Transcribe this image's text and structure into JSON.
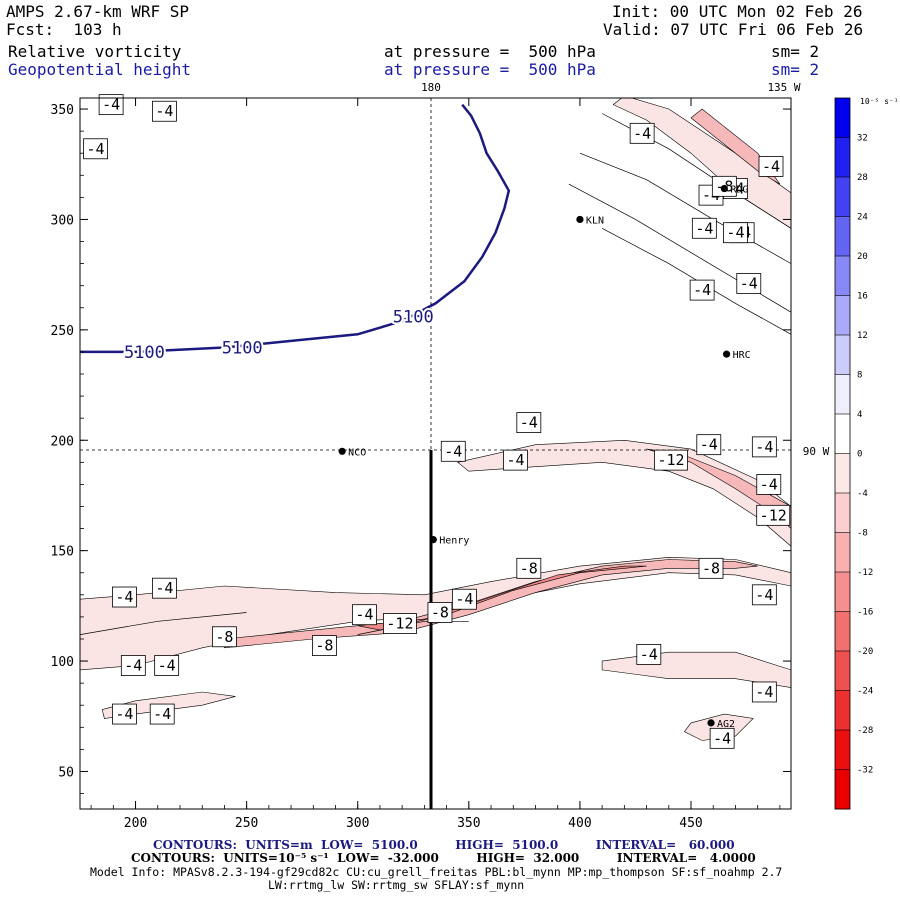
{
  "header": {
    "model": "AMPS 2.67-km WRF SP",
    "fcst": "Fcst:  103 h",
    "init": "Init: 00 UTC Mon 02 Feb 26",
    "valid": "Valid: 07 UTC Fri 06 Feb 26",
    "field1": "Relative vorticity",
    "field2": "Geopotential height",
    "pressure1": "at pressure =  500 hPa",
    "pressure2": "at pressure =  500 hPa",
    "sm1": "sm= 2",
    "sm2": "sm= 2"
  },
  "map_labels": {
    "top_180": "180",
    "top_135w": "135 W",
    "right_90w": "90 W"
  },
  "chart_data": {
    "type": "contour",
    "xlim": [
      175,
      495
    ],
    "ylim": [
      33,
      355
    ],
    "x_ticks": [
      200,
      250,
      300,
      350,
      400,
      450
    ],
    "y_ticks": [
      50,
      100,
      150,
      200,
      250,
      300,
      350
    ],
    "geopotential_height_5100": {
      "label": "5100",
      "labels": [
        "5100",
        "5100",
        "5100"
      ],
      "points": [
        [
          175,
          240
        ],
        [
          200,
          240
        ],
        [
          240,
          242
        ],
        [
          270,
          245
        ],
        [
          300,
          248
        ],
        [
          320,
          254
        ],
        [
          335,
          262
        ],
        [
          348,
          272
        ],
        [
          356,
          283
        ],
        [
          362,
          294
        ],
        [
          366,
          305
        ],
        [
          368,
          313
        ],
        [
          363,
          322
        ],
        [
          358,
          330
        ],
        [
          355,
          339
        ],
        [
          351,
          347
        ],
        [
          347,
          352
        ]
      ]
    },
    "vorticity_labels": [
      {
        "text": "-4",
        "x": 182,
        "y": 332
      },
      {
        "text": "-4",
        "x": 189,
        "y": 352
      },
      {
        "text": "-4",
        "x": 213,
        "y": 349
      },
      {
        "text": "-4",
        "x": 456,
        "y": 296
      },
      {
        "text": "-4",
        "x": 428,
        "y": 339
      },
      {
        "text": "-4",
        "x": 459,
        "y": 311
      },
      {
        "text": "-4",
        "x": 470,
        "y": 314
      },
      {
        "text": "-4",
        "x": 473,
        "y": 294
      },
      {
        "text": "-4",
        "x": 486,
        "y": 324
      },
      {
        "text": "-4",
        "x": 455,
        "y": 268
      },
      {
        "text": "-4",
        "x": 470,
        "y": 294
      },
      {
        "text": "-4",
        "x": 476,
        "y": 271
      },
      {
        "text": "-4",
        "x": 377,
        "y": 208
      },
      {
        "text": "-4",
        "x": 343,
        "y": 195
      },
      {
        "text": "-4",
        "x": 371,
        "y": 191
      },
      {
        "text": "-4",
        "x": 458,
        "y": 198
      },
      {
        "text": "-4",
        "x": 483,
        "y": 197
      },
      {
        "text": "-4",
        "x": 485,
        "y": 180
      },
      {
        "text": "-4",
        "x": 195,
        "y": 129
      },
      {
        "text": "-4",
        "x": 213,
        "y": 133
      },
      {
        "text": "-4",
        "x": 199,
        "y": 98
      },
      {
        "text": "-4",
        "x": 214,
        "y": 98
      },
      {
        "text": "-4",
        "x": 195,
        "y": 76
      },
      {
        "text": "-4",
        "x": 212,
        "y": 76
      },
      {
        "text": "-4",
        "x": 303,
        "y": 121
      },
      {
        "text": "-4",
        "x": 348,
        "y": 128
      },
      {
        "text": "-4",
        "x": 483,
        "y": 130
      },
      {
        "text": "-4",
        "x": 431,
        "y": 103
      },
      {
        "text": "-4",
        "x": 483,
        "y": 86
      },
      {
        "text": "-4",
        "x": 464,
        "y": 65
      },
      {
        "text": "-8",
        "x": 240,
        "y": 111
      },
      {
        "text": "-8",
        "x": 285,
        "y": 107
      },
      {
        "text": "-8",
        "x": 337,
        "y": 122
      },
      {
        "text": "-8",
        "x": 377,
        "y": 142
      },
      {
        "text": "-8",
        "x": 459,
        "y": 142
      },
      {
        "text": "-8",
        "x": 465,
        "y": 315
      },
      {
        "text": "-12",
        "x": 319,
        "y": 117
      },
      {
        "text": "-12",
        "x": 441,
        "y": 191
      },
      {
        "text": "-12",
        "x": 487,
        "y": 166
      }
    ],
    "stations": [
      {
        "name": "KLN",
        "x": 400,
        "y": 300
      },
      {
        "name": "RDG",
        "x": 465,
        "y": 314
      },
      {
        "name": "HRC",
        "x": 466,
        "y": 239
      },
      {
        "name": "NCO",
        "x": 293,
        "y": 195
      },
      {
        "name": "Henry",
        "x": 334,
        "y": 155
      },
      {
        "name": "AG2",
        "x": 459,
        "y": 72
      }
    ],
    "colorbar": {
      "unit": "10⁻⁵ s⁻¹",
      "ticks": [
        "32",
        "28",
        "24",
        "20",
        "16",
        "12",
        "8",
        "4",
        "0",
        "-4",
        "-8",
        "-12",
        "-16",
        "-20",
        "-24",
        "-28",
        "-32"
      ],
      "colors": [
        "#0000ee",
        "#2020f0",
        "#4242f2",
        "#6464f4",
        "#8888f6",
        "#aaaaf8",
        "#ccccfa",
        "#eeeefd",
        "#ffffff",
        "#fde8e8",
        "#fbcfcf",
        "#f8b0b0",
        "#f59090",
        "#f27070",
        "#ef5050",
        "#ec3030",
        "#ea1010",
        "#e80000"
      ]
    }
  },
  "footer": {
    "line1": "CONTOURS:  UNITS=m  LOW=  5100.0         HIGH=  5100.0         INTERVAL=   60.000",
    "line2": "CONTOURS:  UNITS=10⁻⁵ s⁻¹  LOW=  -32.000         HIGH=  32.000         INTERVAL=   4.0000",
    "line3": "Model Info: MPASv8.2.3-194-gf29cd82c CU:cu_grell_freitas PBL:bl_mynn MP:mp_thompson SF:sf_noahmp 2.7",
    "line4": "LW:rrtmg_lw SW:rrtmg_sw SFLAY:sf_mynn"
  }
}
